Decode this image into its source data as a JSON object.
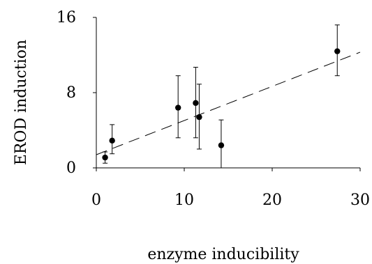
{
  "chart_data": {
    "type": "scatter",
    "xlabel": "enzyme inducibility",
    "ylabel": "EROD induction",
    "xlim": [
      0,
      30
    ],
    "ylim": [
      0,
      16
    ],
    "xticks": [
      0,
      10,
      20,
      30
    ],
    "yticks": [
      0,
      8,
      16
    ],
    "grid": false,
    "legend": "none",
    "marker_color": "#000000",
    "points": [
      {
        "x": 1.0,
        "y": 1.1,
        "err_low": 0.6,
        "err_high": 0.6
      },
      {
        "x": 1.8,
        "y": 2.9,
        "err_low": 1.4,
        "err_high": 1.7
      },
      {
        "x": 9.3,
        "y": 6.4,
        "err_low": 3.2,
        "err_high": 3.4
      },
      {
        "x": 11.3,
        "y": 6.9,
        "err_low": 3.7,
        "err_high": 3.8
      },
      {
        "x": 11.7,
        "y": 5.4,
        "err_low": 3.4,
        "err_high": 3.5
      },
      {
        "x": 14.2,
        "y": 2.4,
        "err_low": 2.4,
        "err_high": 2.7
      },
      {
        "x": 27.4,
        "y": 12.4,
        "err_low": 2.6,
        "err_high": 2.8
      }
    ],
    "trendline": {
      "style": "dashed",
      "x": [
        0,
        30
      ],
      "y": [
        1.4,
        12.3
      ]
    }
  }
}
